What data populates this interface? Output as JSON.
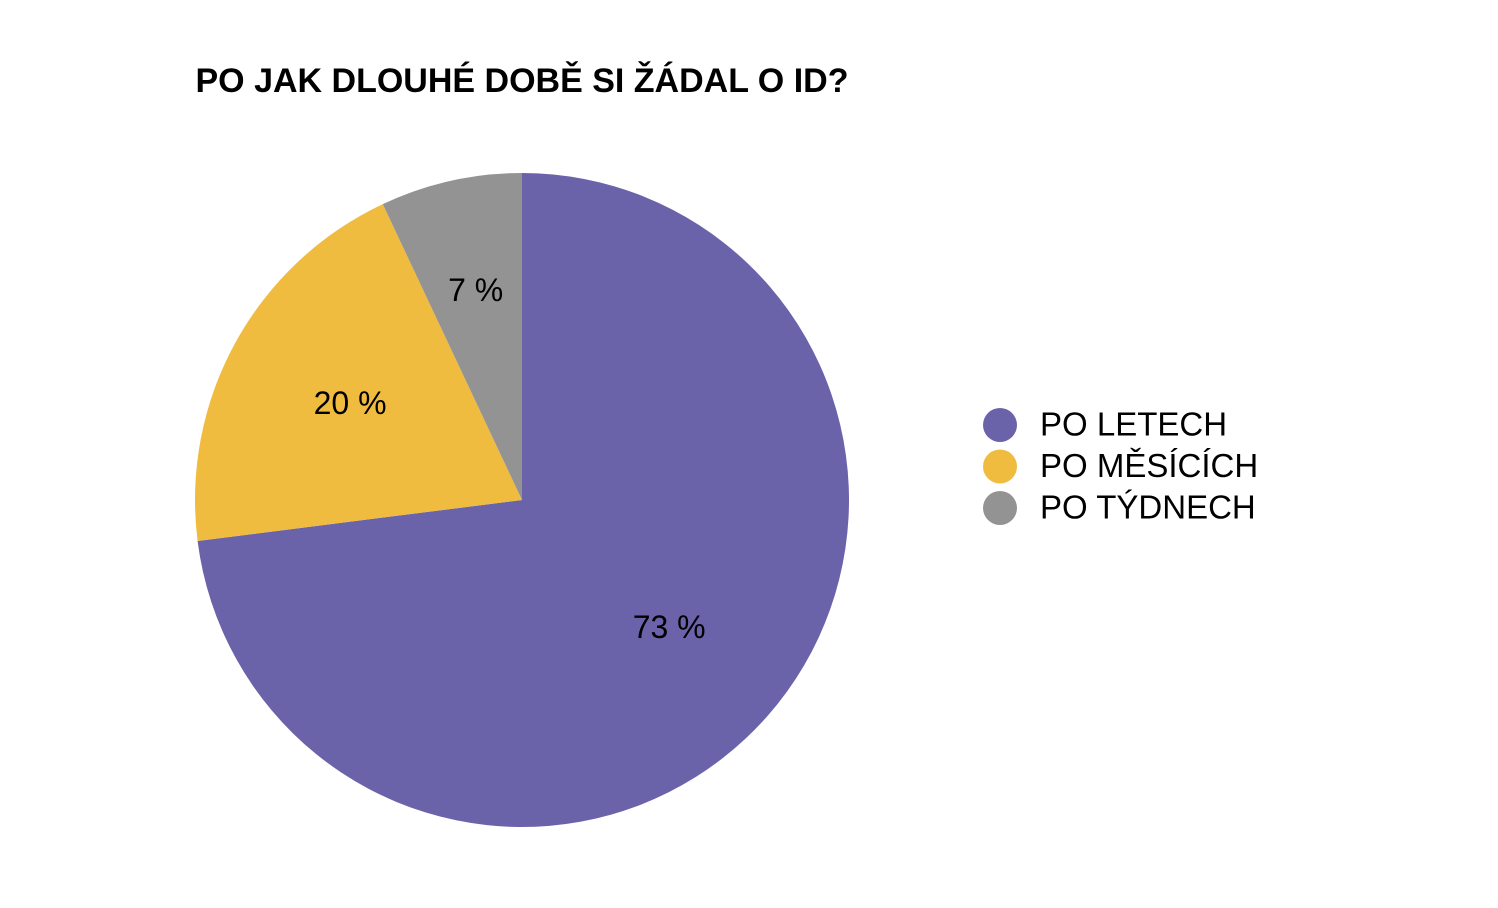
{
  "chart_data": {
    "type": "pie",
    "title": "PO JAK DLOUHÉ DOBĚ SI ŽÁDAL O ID?",
    "categories": [
      "PO LETECH",
      "PO MĚSÍCÍCH",
      "PO TÝDNECH"
    ],
    "values": [
      73,
      20,
      7
    ],
    "value_labels": [
      "73 %",
      "20 %",
      "7 %"
    ],
    "colors": [
      "#6b63aa",
      "#efbc40",
      "#939393"
    ],
    "legend": "right"
  }
}
